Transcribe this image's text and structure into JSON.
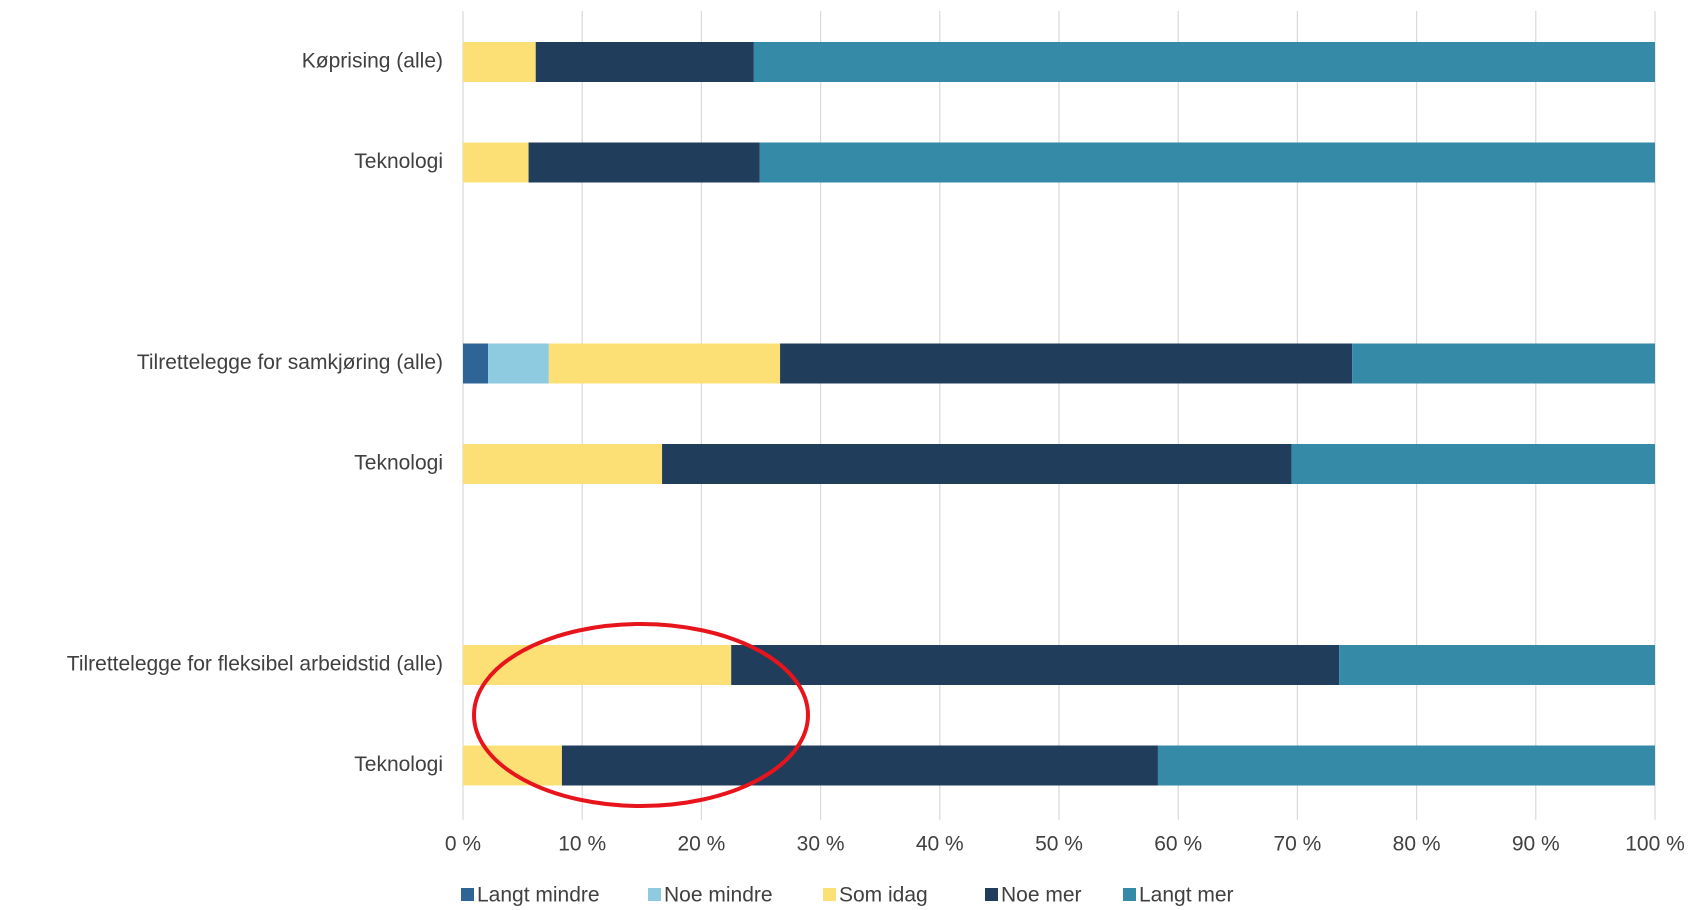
{
  "chart_data": {
    "type": "bar",
    "orientation": "horizontal",
    "stacked": true,
    "categories": [
      "Køprising (alle)",
      "Teknologi",
      null,
      "Tilrettelegge for samkjøring (alle)",
      "Teknologi",
      null,
      "Tilrettelegge for fleksibel arbeidstid (alle)",
      "Teknologi"
    ],
    "series": [
      {
        "name": "Langt mindre",
        "color": "#2e6496",
        "values": [
          0,
          0,
          null,
          2.1,
          0,
          null,
          0,
          0
        ]
      },
      {
        "name": "Noe mindre",
        "color": "#8ecae0",
        "values": [
          0,
          0,
          null,
          5.1,
          0,
          null,
          0,
          0
        ]
      },
      {
        "name": "Som idag",
        "color": "#fce075",
        "values": [
          6.1,
          5.5,
          null,
          19.4,
          16.7,
          null,
          22.5,
          8.3
        ]
      },
      {
        "name": "Noe mer",
        "color": "#203d5c",
        "values": [
          18.3,
          19.4,
          null,
          48.0,
          52.8,
          null,
          51.0,
          50.0
        ]
      },
      {
        "name": "Langt mer",
        "color": "#358aa8",
        "values": [
          75.6,
          75.1,
          null,
          25.4,
          30.5,
          null,
          26.5,
          41.7
        ]
      }
    ],
    "xlim": [
      0,
      100
    ],
    "xticks": [
      {
        "value": 0,
        "label": "0 %"
      },
      {
        "value": 10,
        "label": "10 %"
      },
      {
        "value": 20,
        "label": "20 %"
      },
      {
        "value": 30,
        "label": "30 %"
      },
      {
        "value": 40,
        "label": "40 %"
      },
      {
        "value": 50,
        "label": "50 %"
      },
      {
        "value": 60,
        "label": "60 %"
      },
      {
        "value": 70,
        "label": "70 %"
      },
      {
        "value": 80,
        "label": "80 %"
      },
      {
        "value": 90,
        "label": "90 %"
      },
      {
        "value": 100,
        "label": "100 %"
      }
    ],
    "grid": true,
    "legend": "bottom"
  }
}
